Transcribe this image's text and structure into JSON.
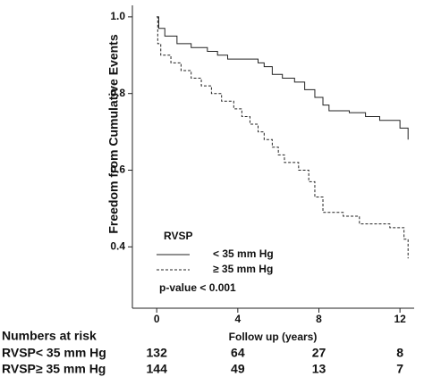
{
  "chart_data": {
    "type": "step",
    "y_label": "Freedom from Cumulative Events",
    "x_label": "Follow up (years)",
    "legend_title": "RVSP",
    "annotation": "p-value < 0.001",
    "xlim": [
      -1.2,
      12.7
    ],
    "ylim": [
      0.24,
      1.03
    ],
    "xticks": [
      0,
      4,
      8,
      12
    ],
    "yticks": [
      {
        "value": 1.0,
        "label": "1.0"
      },
      {
        "value": 0.8,
        "label": "0.8"
      },
      {
        "value": 0.6,
        "label": "0.6"
      },
      {
        "value": 0.4,
        "label": "0.4"
      }
    ],
    "series": [
      {
        "name": "< 35 mm Hg",
        "color": "#222222",
        "dashed": false,
        "x": [
          0,
          0.1,
          0.4,
          1,
          1.7,
          2.5,
          3.0,
          3.5,
          5,
          5.3,
          5.7,
          6.2,
          6.8,
          7.3,
          7.8,
          8.2,
          8.5,
          9.5,
          10.3,
          11,
          12.0,
          12.4
        ],
        "values": [
          1.0,
          0.97,
          0.95,
          0.93,
          0.92,
          0.91,
          0.9,
          0.89,
          0.88,
          0.87,
          0.85,
          0.84,
          0.83,
          0.81,
          0.79,
          0.77,
          0.755,
          0.75,
          0.74,
          0.73,
          0.71,
          0.68
        ]
      },
      {
        "name": "≥ 35 mm Hg",
        "color": "#222222",
        "dashed": true,
        "x": [
          0,
          0.05,
          0.2,
          0.7,
          1.2,
          1.7,
          2.2,
          2.7,
          3.2,
          3.8,
          4.2,
          4.6,
          5,
          5.3,
          5.7,
          6.0,
          6.3,
          7.0,
          7.5,
          7.8,
          8.2,
          9.2,
          10,
          11.5,
          12.2,
          12.4
        ],
        "values": [
          1.0,
          0.93,
          0.9,
          0.88,
          0.86,
          0.84,
          0.82,
          0.8,
          0.78,
          0.76,
          0.74,
          0.72,
          0.7,
          0.68,
          0.66,
          0.64,
          0.62,
          0.6,
          0.57,
          0.53,
          0.49,
          0.48,
          0.46,
          0.45,
          0.42,
          0.37
        ]
      }
    ],
    "risk_table": {
      "title": "Numbers at risk",
      "rows": [
        {
          "label": "RVSP< 35 mm Hg",
          "counts": [
            132,
            64,
            27,
            8
          ]
        },
        {
          "label": "RVSP≥ 35 mm Hg",
          "counts": [
            144,
            49,
            13,
            7
          ]
        }
      ]
    }
  }
}
